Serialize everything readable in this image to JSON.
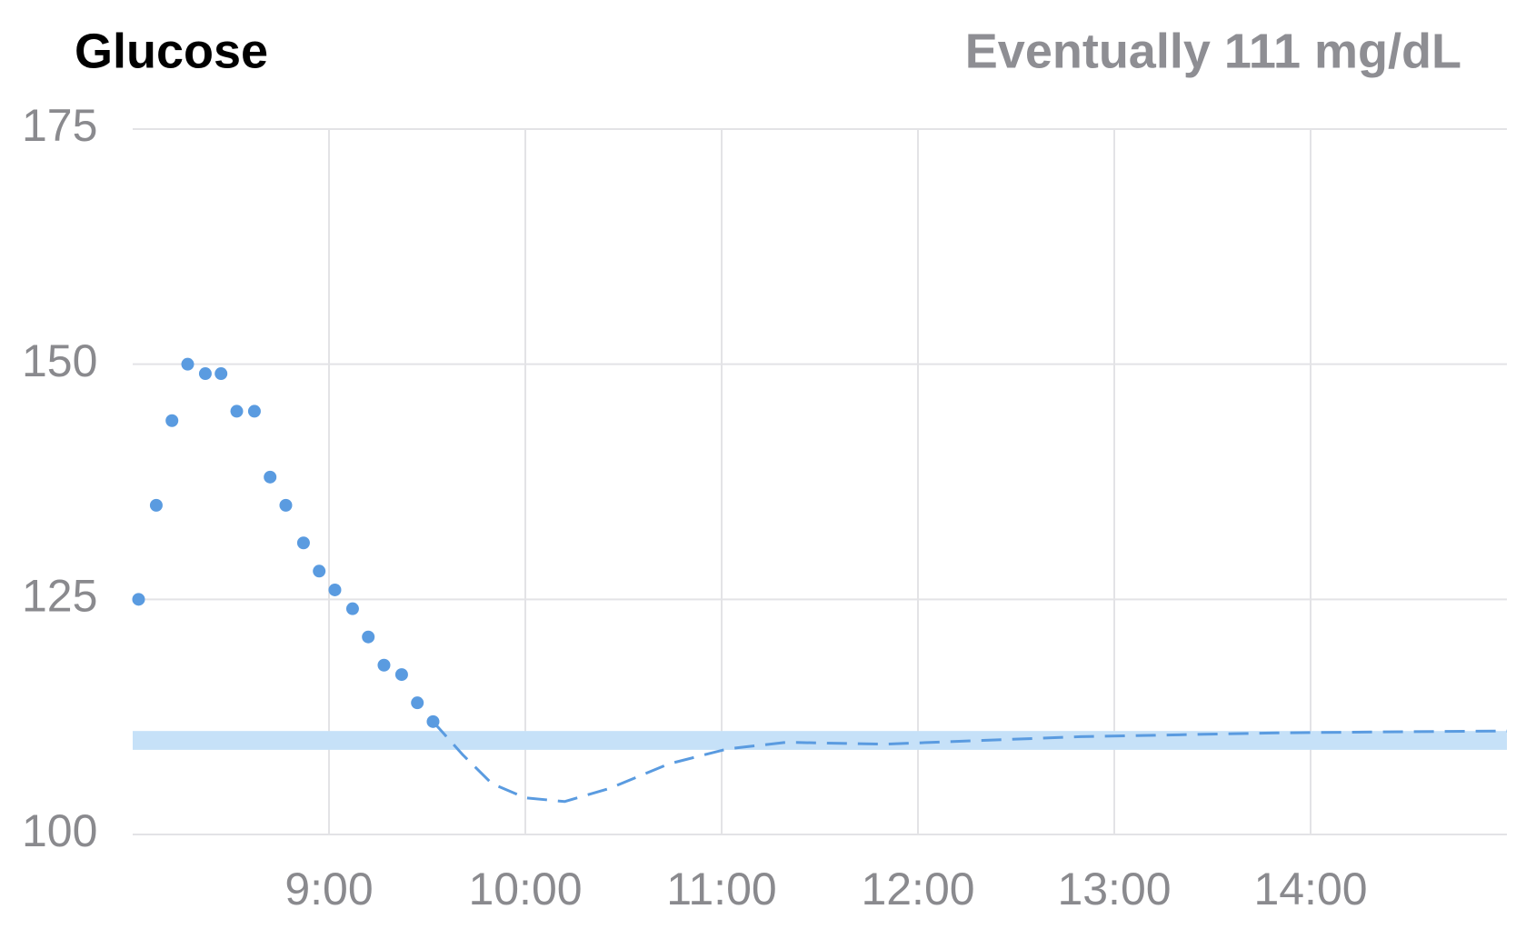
{
  "chart_data": {
    "type": "scatter",
    "title": "Glucose",
    "subtitle": "Eventually 111 mg/dL",
    "xlim": [
      8,
      15
    ],
    "xticks": [
      {
        "value": 9,
        "label": "9:00"
      },
      {
        "value": 10,
        "label": "10:00"
      },
      {
        "value": 11,
        "label": "11:00"
      },
      {
        "value": 12,
        "label": "12:00"
      },
      {
        "value": 13,
        "label": "13:00"
      },
      {
        "value": 14,
        "label": "14:00"
      }
    ],
    "ylim": [
      100,
      175
    ],
    "yticks": [
      100,
      125,
      150,
      175
    ],
    "grid": true,
    "target_range": {
      "values": [
        109,
        111
      ],
      "color": "#c6e1f8"
    },
    "series": [
      {
        "type": "scatter",
        "color": "#5a9be0",
        "x": [
          8.03,
          8.12,
          8.2,
          8.28,
          8.37,
          8.45,
          8.53,
          8.62,
          8.7,
          8.78,
          8.87,
          8.95,
          9.03,
          9.12,
          9.2,
          9.28,
          9.37,
          9.45,
          9.53
        ],
        "values": [
          125,
          135,
          144,
          150,
          149,
          149,
          145,
          145,
          138,
          135,
          131,
          128,
          126,
          124,
          121,
          118,
          117,
          114,
          112
        ]
      },
      {
        "type": "line",
        "color": "#5a9be0",
        "dashed": true,
        "x": [
          9.53,
          9.68,
          9.83,
          10,
          10.2,
          10.43,
          10.73,
          11.03,
          11.33,
          11.83,
          12.33,
          12.83,
          13.33,
          13.83,
          14.33,
          15
        ],
        "values": [
          112,
          108.5,
          105.4,
          103.9,
          103.5,
          104.9,
          107.5,
          109.1,
          109.8,
          109.6,
          110,
          110.4,
          110.6,
          110.8,
          110.9,
          111
        ]
      }
    ]
  }
}
